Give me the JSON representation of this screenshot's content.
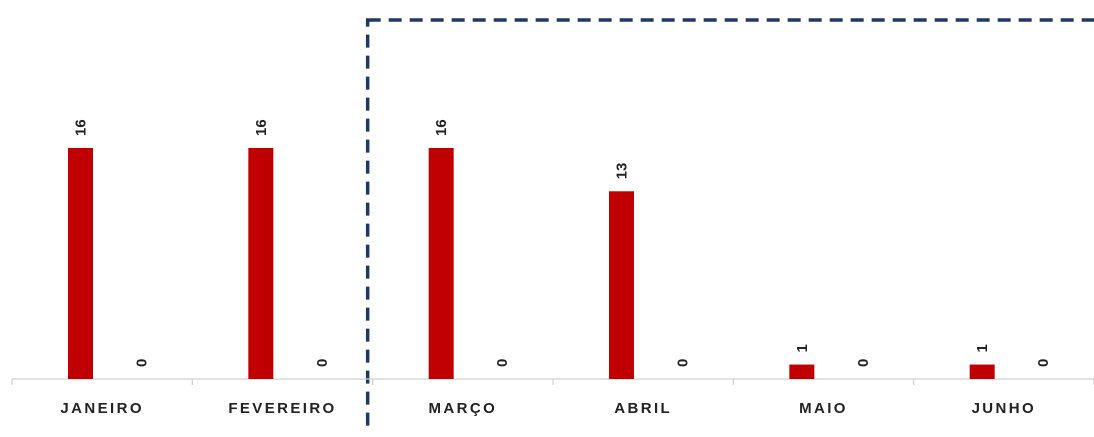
{
  "chart_data": {
    "type": "bar",
    "categories": [
      "JANEIRO",
      "FEVEREIRO",
      "MARÇO",
      "ABRIL",
      "MAIO",
      "JUNHO"
    ],
    "series": [
      {
        "values": [
          16,
          16,
          16,
          13,
          1,
          1
        ],
        "color": "#c00000"
      },
      {
        "values": [
          0,
          0,
          0,
          0,
          0,
          0
        ],
        "color": "#c00000"
      }
    ],
    "ylim": [
      0,
      22
    ],
    "data_labels": "rotated-vertical",
    "grid": false,
    "legend": "none",
    "highlight_box": {
      "categories": [
        "MARÇO",
        "ABRIL",
        "MAIO",
        "JUNHO"
      ],
      "style": "dashed",
      "color": "#1f3864"
    }
  }
}
